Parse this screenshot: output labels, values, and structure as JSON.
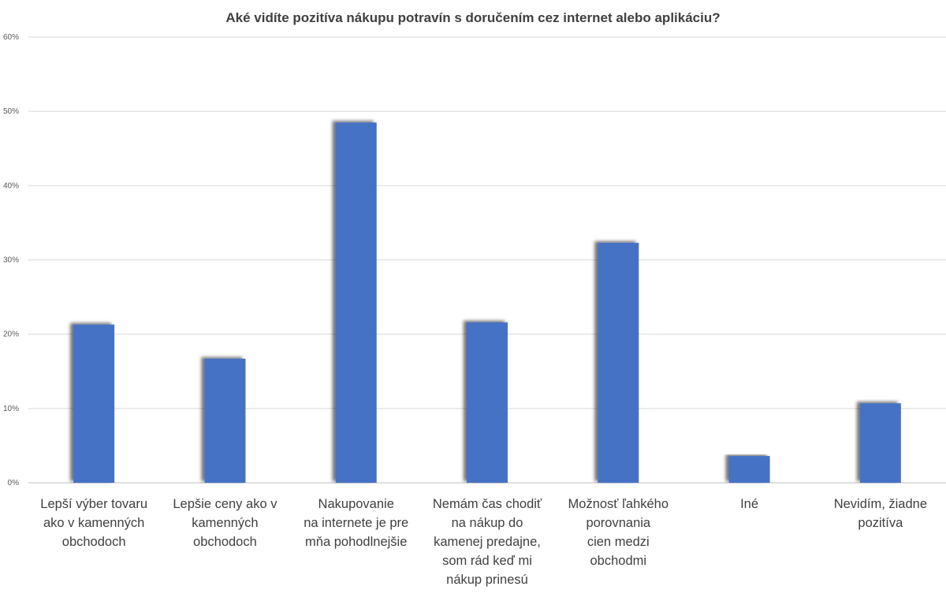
{
  "chart_data": {
    "type": "bar",
    "title": "Aké vidíte pozitíva nákupu potravín s doručením cez internet alebo aplikáciu?",
    "xlabel": "",
    "ylabel": "",
    "ylim": [
      0,
      60
    ],
    "yticks": [
      "0%",
      "10%",
      "20%",
      "30%",
      "40%",
      "50%",
      "60%"
    ],
    "grid": true,
    "legend": "none",
    "categories": [
      [
        "Lepší výber tovaru",
        "ako v kamenných",
        "obchodoch"
      ],
      [
        "Lepšie ceny ako v",
        "kamenných",
        "obchodoch"
      ],
      [
        "Nakupovanie",
        "na internete je pre",
        "mňa pohodlnejšie"
      ],
      [
        "Nemám čas chodiť",
        "na nákup do",
        "kamenej predajne,",
        "som rád keď mi",
        "nákup prinesú"
      ],
      [
        "Možnosť ľahkého",
        "porovnania",
        "cien medzi",
        "obchodmi"
      ],
      [
        "Iné"
      ],
      [
        "Nevidím, žiadne",
        "pozitíva"
      ]
    ],
    "values": [
      21.3,
      16.7,
      48.5,
      21.6,
      32.3,
      3.6,
      10.7
    ],
    "bar_color": "#4472c4"
  }
}
